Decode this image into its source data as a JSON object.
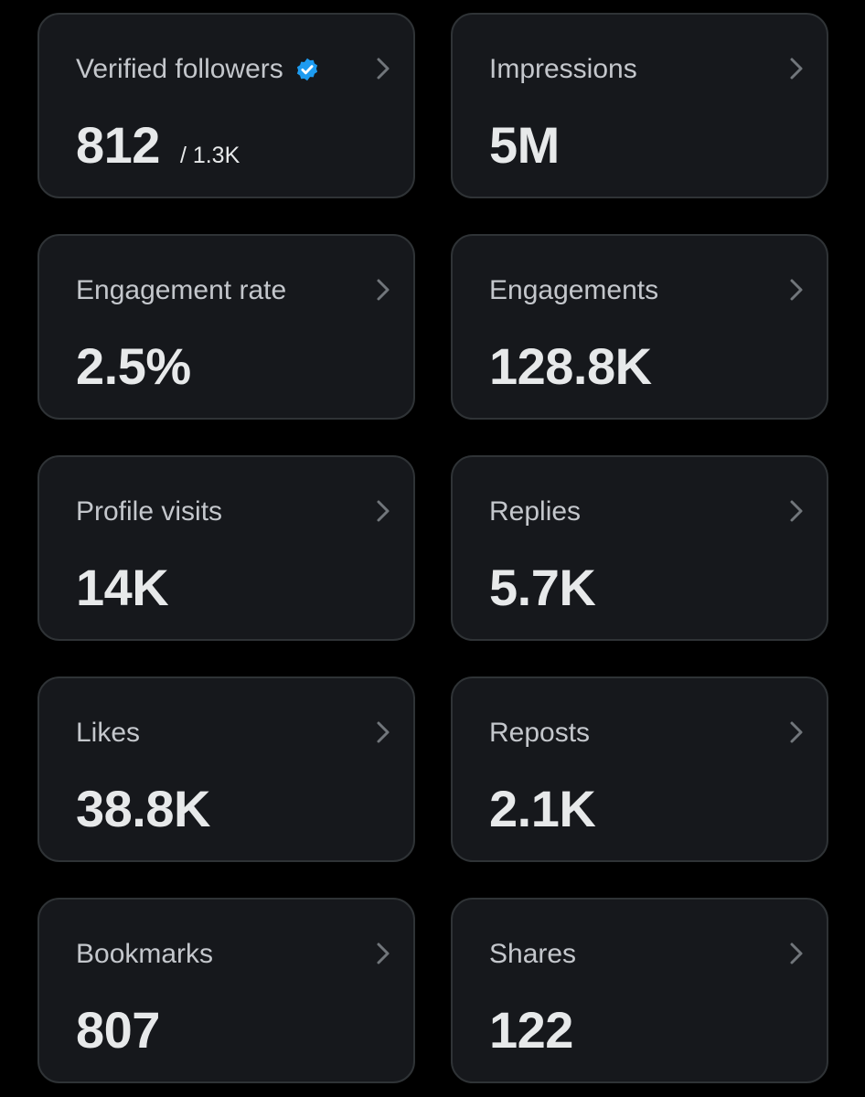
{
  "accent_color": "#1d9bf0",
  "metrics": [
    {
      "label": "Verified followers",
      "value": "812",
      "total": "/ 1.3K",
      "icon": "verified-badge-icon"
    },
    {
      "label": "Impressions",
      "value": "5M"
    },
    {
      "label": "Engagement rate",
      "value": "2.5%"
    },
    {
      "label": "Engagements",
      "value": "128.8K"
    },
    {
      "label": "Profile visits",
      "value": "14K"
    },
    {
      "label": "Replies",
      "value": "5.7K"
    },
    {
      "label": "Likes",
      "value": "38.8K"
    },
    {
      "label": "Reposts",
      "value": "2.1K"
    },
    {
      "label": "Bookmarks",
      "value": "807"
    },
    {
      "label": "Shares",
      "value": "122"
    }
  ]
}
